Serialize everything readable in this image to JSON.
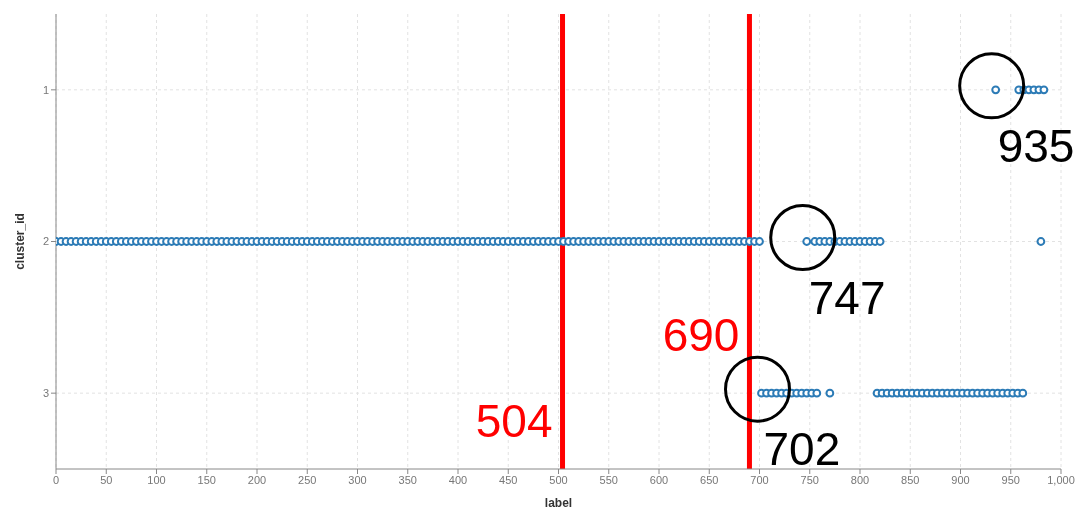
{
  "chart_data": {
    "type": "scatter",
    "xlabel": "label",
    "ylabel": "cluster_id",
    "xlim": [
      0,
      1000
    ],
    "xticks": [
      0,
      50,
      100,
      150,
      200,
      250,
      300,
      350,
      400,
      450,
      500,
      550,
      600,
      650,
      700,
      750,
      800,
      850,
      900,
      950,
      {
        "value": 1000,
        "label": "1,000"
      }
    ],
    "ylim": [
      3.5,
      0.5
    ],
    "yticks": [
      1,
      2,
      3
    ],
    "grid": true,
    "marker": "circle",
    "series": [
      {
        "color": "#2c7bb6",
        "x": [
          0,
          5,
          10,
          15,
          20,
          25,
          30,
          35,
          40,
          45,
          50,
          55,
          60,
          65,
          70,
          75,
          80,
          85,
          90,
          95,
          100,
          105,
          110,
          115,
          120,
          125,
          130,
          135,
          140,
          145,
          150,
          155,
          160,
          165,
          170,
          175,
          180,
          185,
          190,
          195,
          200,
          205,
          210,
          215,
          220,
          225,
          230,
          235,
          240,
          245,
          250,
          255,
          260,
          265,
          270,
          275,
          280,
          285,
          290,
          295,
          300,
          305,
          310,
          315,
          320,
          325,
          330,
          335,
          340,
          345,
          350,
          355,
          360,
          365,
          370,
          375,
          380,
          385,
          390,
          395,
          400,
          405,
          410,
          415,
          420,
          425,
          430,
          435,
          440,
          445,
          450,
          455,
          460,
          465,
          470,
          475,
          480,
          485,
          490,
          495,
          500,
          505,
          510,
          515,
          520,
          525,
          530,
          535,
          540,
          545,
          550,
          555,
          560,
          565,
          570,
          575,
          580,
          585,
          590,
          595,
          600,
          605,
          610,
          615,
          620,
          625,
          630,
          635,
          640,
          645,
          650,
          655,
          660,
          665,
          670,
          675,
          680,
          685,
          690,
          695,
          700,
          747,
          755,
          760,
          765,
          770,
          775,
          780,
          785,
          790,
          795,
          800,
          805,
          810,
          815,
          820,
          980
        ],
        "values": [
          2,
          2,
          2,
          2,
          2,
          2,
          2,
          2,
          2,
          2,
          2,
          2,
          2,
          2,
          2,
          2,
          2,
          2,
          2,
          2,
          2,
          2,
          2,
          2,
          2,
          2,
          2,
          2,
          2,
          2,
          2,
          2,
          2,
          2,
          2,
          2,
          2,
          2,
          2,
          2,
          2,
          2,
          2,
          2,
          2,
          2,
          2,
          2,
          2,
          2,
          2,
          2,
          2,
          2,
          2,
          2,
          2,
          2,
          2,
          2,
          2,
          2,
          2,
          2,
          2,
          2,
          2,
          2,
          2,
          2,
          2,
          2,
          2,
          2,
          2,
          2,
          2,
          2,
          2,
          2,
          2,
          2,
          2,
          2,
          2,
          2,
          2,
          2,
          2,
          2,
          2,
          2,
          2,
          2,
          2,
          2,
          2,
          2,
          2,
          2,
          2,
          2,
          2,
          2,
          2,
          2,
          2,
          2,
          2,
          2,
          2,
          2,
          2,
          2,
          2,
          2,
          2,
          2,
          2,
          2,
          2,
          2,
          2,
          2,
          2,
          2,
          2,
          2,
          2,
          2,
          2,
          2,
          2,
          2,
          2,
          2,
          2,
          2,
          2,
          2,
          2,
          2,
          2,
          2,
          2,
          2,
          2,
          2,
          2,
          2,
          2,
          2,
          2,
          2,
          2,
          2,
          2
        ]
      },
      {
        "color": "#2c7bb6",
        "x": [
          935,
          958,
          963,
          968,
          973,
          978,
          983
        ],
        "values": [
          1,
          1,
          1,
          1,
          1,
          1,
          1
        ]
      },
      {
        "color": "#2c7bb6",
        "x": [
          702,
          707,
          712,
          717,
          722,
          727,
          732,
          737,
          742,
          747,
          752,
          757,
          770,
          817,
          822,
          827,
          832,
          837,
          842,
          847,
          852,
          857,
          862,
          867,
          872,
          877,
          882,
          887,
          892,
          897,
          902,
          907,
          912,
          917,
          922,
          927,
          932,
          937,
          942,
          947,
          952,
          957,
          962
        ],
        "values": [
          3,
          3,
          3,
          3,
          3,
          3,
          3,
          3,
          3,
          3,
          3,
          3,
          3,
          3,
          3,
          3,
          3,
          3,
          3,
          3,
          3,
          3,
          3,
          3,
          3,
          3,
          3,
          3,
          3,
          3,
          3,
          3,
          3,
          3,
          3,
          3,
          3,
          3,
          3,
          3,
          3,
          3,
          3
        ]
      }
    ],
    "ref_lines": [
      {
        "axis": "x",
        "value": 504,
        "label": "504",
        "color": "#ff0000"
      },
      {
        "axis": "x",
        "value": 690,
        "label": "690",
        "color": "#ff0000"
      }
    ],
    "annotations": [
      {
        "text": "935",
        "x": 935,
        "y": 1
      },
      {
        "text": "747",
        "x": 747,
        "y": 2
      },
      {
        "text": "702",
        "x": 702,
        "y": 3
      }
    ]
  }
}
